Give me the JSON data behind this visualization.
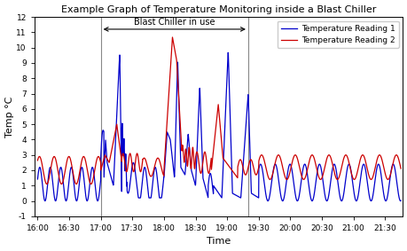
{
  "title": "Example Graph of Temperature Monitoring inside a Blast Chiller",
  "xlabel": "Time",
  "ylabel": "Temp °C",
  "ylim": [
    -1,
    12
  ],
  "line1_color": "#0000cc",
  "line2_color": "#cc0000",
  "legend_labels": [
    "Temperature Reading 1",
    "Temperature Reading 2"
  ],
  "annotation_text": "Blast Chiller in use",
  "vline1_min": 60,
  "vline2_min": 200,
  "tick_minutes": [
    0,
    30,
    60,
    90,
    120,
    150,
    180,
    210,
    240,
    270,
    300,
    330
  ],
  "tick_labels": [
    "16:00",
    "16:30",
    "17:00",
    "17:30",
    "18:00",
    "18:30",
    "19:00",
    "19:30",
    "20:00",
    "20:30",
    "21:00",
    "21:30"
  ],
  "xlim_min": -3,
  "xlim_max": 347,
  "background_color": "#ffffff",
  "figsize": [
    4.6,
    2.83
  ],
  "dpi": 100
}
